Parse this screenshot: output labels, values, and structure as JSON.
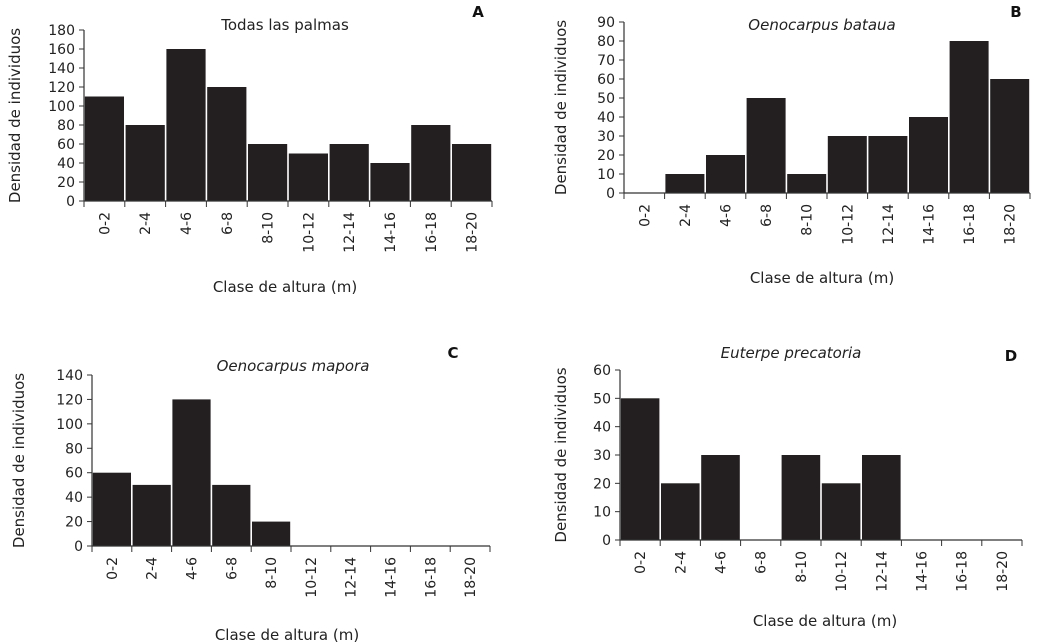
{
  "chart_data": [
    {
      "type": "bar",
      "panel": "A",
      "title": "Todas las palmas",
      "title_italic": false,
      "xlabel": "Clase de altura (m)",
      "ylabel": "Densidad de individuos",
      "categories": [
        "0-2",
        "2-4",
        "4-6",
        "6-8",
        "8-10",
        "10-12",
        "12-14",
        "14-16",
        "16-18",
        "18-20"
      ],
      "values": [
        110,
        80,
        160,
        120,
        60,
        50,
        60,
        40,
        80,
        60
      ],
      "ylim": [
        0,
        180
      ],
      "yticks": [
        0,
        20,
        40,
        60,
        80,
        100,
        120,
        140,
        160,
        180
      ],
      "bar_color": "#231f20",
      "grid": false
    },
    {
      "type": "bar",
      "panel": "B",
      "title": "Oenocarpus bataua",
      "title_italic": true,
      "xlabel": "Clase de altura (m)",
      "ylabel": "Densidad de individuos",
      "categories": [
        "0-2",
        "2-4",
        "4-6",
        "6-8",
        "8-10",
        "10-12",
        "12-14",
        "14-16",
        "16-18",
        "18-20"
      ],
      "values": [
        0,
        10,
        20,
        50,
        10,
        30,
        30,
        40,
        80,
        60
      ],
      "ylim": [
        0,
        90
      ],
      "yticks": [
        0,
        10,
        20,
        30,
        40,
        50,
        60,
        70,
        80,
        90
      ],
      "bar_color": "#231f20",
      "grid": false
    },
    {
      "type": "bar",
      "panel": "C",
      "title": "Oenocarpus mapora",
      "title_italic": true,
      "xlabel": "Clase de altura (m)",
      "ylabel": "Densidad de individuos",
      "categories": [
        "0-2",
        "2-4",
        "4-6",
        "6-8",
        "8-10",
        "10-12",
        "12-14",
        "14-16",
        "16-18",
        "18-20"
      ],
      "values": [
        60,
        50,
        120,
        50,
        20,
        0,
        0,
        0,
        0,
        0
      ],
      "ylim": [
        0,
        140
      ],
      "yticks": [
        0,
        20,
        40,
        60,
        80,
        100,
        120,
        140
      ],
      "bar_color": "#231f20",
      "grid": false
    },
    {
      "type": "bar",
      "panel": "D",
      "title": "Euterpe precatoria",
      "title_italic": true,
      "xlabel": "Clase de altura (m)",
      "ylabel": "Densidad de individuos",
      "categories": [
        "0-2",
        "2-4",
        "4-6",
        "6-8",
        "8-10",
        "10-12",
        "12-14",
        "14-16",
        "16-18",
        "18-20"
      ],
      "values": [
        50,
        20,
        30,
        0,
        30,
        20,
        30,
        0,
        0,
        0
      ],
      "ylim": [
        0,
        60
      ],
      "yticks": [
        0,
        10,
        20,
        30,
        40,
        50,
        60
      ],
      "bar_color": "#231f20",
      "grid": false
    }
  ]
}
